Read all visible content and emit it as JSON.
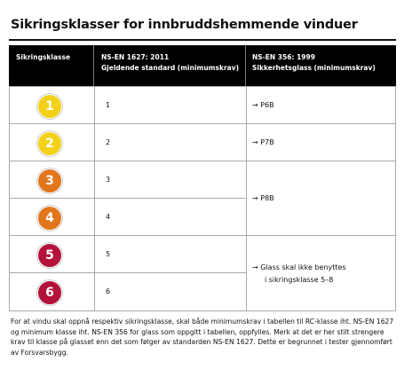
{
  "title": "Sikringsklasser for innbruddshemmende vinduer",
  "table": {
    "headers": [
      [
        "Sikringsklasse"
      ],
      [
        "NS-EN 1627: 2011",
        "Gjeldende standard (minimumskrav)"
      ],
      [
        "NS-EN 356: 1999",
        "Sikkerhetsglass (minimumskrav)"
      ]
    ],
    "rows": [
      {
        "class": "1",
        "standard": "1"
      },
      {
        "class": "2",
        "standard": "2"
      },
      {
        "class": "3",
        "standard": "3"
      },
      {
        "class": "4",
        "standard": "4"
      },
      {
        "class": "5",
        "standard": "5"
      },
      {
        "class": "6",
        "standard": "6"
      }
    ],
    "glass": [
      [
        "→ P6B"
      ],
      [
        "→ P7B"
      ],
      [
        "→ P8B"
      ],
      [
        "→ Glass skal ikke benyttes",
        "i sikringsklasse 5–8"
      ]
    ]
  },
  "footnote": [
    "For at vindu skal oppnå respektiv sikringsklasse, skal både minimumskrav i tabellen til RC-klasse iht. NS-EN 1627",
    "og minimum klasse iht. NS-EN 356 for glass som oppgitt i tabellen, oppfylles. Merk at det er her stilt strengere",
    "krav til klasse på glasset enn det som følger av standarden NS-EN 1627. Dette er begrunnet i tester gjennomført",
    "av Forsvarsbygg."
  ]
}
